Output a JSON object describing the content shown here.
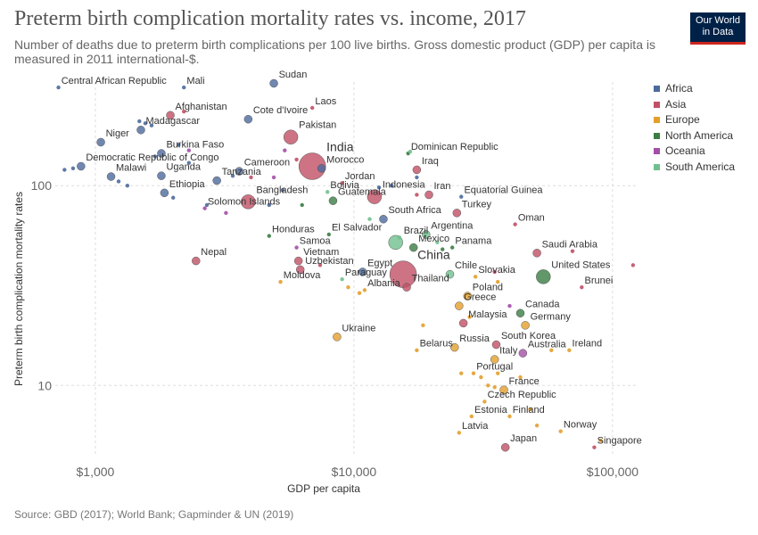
{
  "header": {
    "title": "Preterm birth complication mortality rates vs. income, 2017",
    "subtitle": "Number of deaths due to preterm birth complications per 100 live births. Gross domestic product (GDP) per capita is measured in 2011 international-$."
  },
  "logo": {
    "line1": "Our World",
    "line2": "in Data",
    "bg_color": "#002147",
    "accent_color": "#ce261e"
  },
  "footer": {
    "source": "Source: GBD (2017); World Bank; Gapminder & UN (2019)"
  },
  "chart_data": {
    "type": "scatter",
    "title": "Preterm birth complication mortality rates vs. income, 2017",
    "xlabel": "GDP per capita",
    "ylabel": "Preterm birth complication mortality rates",
    "xscale": "log",
    "yscale": "log",
    "xlim": [
      700,
      125000
    ],
    "ylim": [
      4.5,
      330
    ],
    "xticks": [
      {
        "value": 1000,
        "label": "$1,000"
      },
      {
        "value": 10000,
        "label": "$10,000"
      },
      {
        "value": 100000,
        "label": "$100,000"
      }
    ],
    "yticks": [
      {
        "value": 10,
        "label": "10"
      },
      {
        "value": 100,
        "label": "100"
      }
    ],
    "grid": true,
    "legend_position": "right",
    "series": [
      {
        "name": "Africa",
        "color": "#4c6a9c"
      },
      {
        "name": "Asia",
        "color": "#c15065"
      },
      {
        "name": "Europe",
        "color": "#e39f2b"
      },
      {
        "name": "North America",
        "color": "#3a7d44"
      },
      {
        "name": "Oceania",
        "color": "#a44ea8"
      },
      {
        "name": "South America",
        "color": "#70c08e"
      }
    ],
    "points": [
      {
        "label": "Central African Republic",
        "x": 720,
        "y": 310,
        "region": "Africa",
        "size": "s"
      },
      {
        "label": "Mali",
        "x": 2200,
        "y": 310,
        "region": "Africa",
        "size": "s"
      },
      {
        "label": "Sudan",
        "x": 4900,
        "y": 325,
        "region": "Africa",
        "size": "m"
      },
      {
        "label": "Laos",
        "x": 6900,
        "y": 245,
        "region": "Asia",
        "size": "s"
      },
      {
        "label": "Afghanistan",
        "x": 1950,
        "y": 225,
        "region": "Asia",
        "size": "m"
      },
      {
        "label": "Cote d'Ivoire",
        "x": 3900,
        "y": 215,
        "region": "Africa",
        "size": "m"
      },
      {
        "label": "Madagascar",
        "x": 1500,
        "y": 190,
        "region": "Africa",
        "size": "m"
      },
      {
        "label": "Pakistan",
        "x": 5700,
        "y": 175,
        "region": "Asia",
        "size": "l"
      },
      {
        "label": "Niger",
        "x": 1050,
        "y": 165,
        "region": "Africa",
        "size": "m"
      },
      {
        "label": "India",
        "x": 6900,
        "y": 125,
        "region": "Asia",
        "size": "xl"
      },
      {
        "label": "Burkina Faso",
        "x": 1800,
        "y": 145,
        "region": "Africa",
        "size": "m"
      },
      {
        "label": "Dominican Republic",
        "x": 16200,
        "y": 145,
        "region": "North America",
        "size": "s"
      },
      {
        "label": "Democratic Republic of Congo",
        "x": 880,
        "y": 125,
        "region": "Africa",
        "size": "m"
      },
      {
        "label": "Morocco",
        "x": 7500,
        "y": 122,
        "region": "Africa",
        "size": "m"
      },
      {
        "label": "Iraq",
        "x": 17500,
        "y": 120,
        "region": "Asia",
        "size": "m"
      },
      {
        "label": "Uganda",
        "x": 1800,
        "y": 112,
        "region": "Africa",
        "size": "m"
      },
      {
        "label": "Cameroon",
        "x": 3600,
        "y": 118,
        "region": "Africa",
        "size": "m"
      },
      {
        "label": "Malawi",
        "x": 1150,
        "y": 111,
        "region": "Africa",
        "size": "m"
      },
      {
        "label": "Tanzania",
        "x": 2950,
        "y": 106,
        "region": "Africa",
        "size": "m"
      },
      {
        "label": "Jordan",
        "x": 9000,
        "y": 103,
        "region": "Asia",
        "size": "s"
      },
      {
        "label": "Ethiopia",
        "x": 1850,
        "y": 92,
        "region": "Africa",
        "size": "m"
      },
      {
        "label": "Bolivia",
        "x": 7900,
        "y": 93,
        "region": "South America",
        "size": "s"
      },
      {
        "label": "Indonesia",
        "x": 12000,
        "y": 88,
        "region": "Asia",
        "size": "l"
      },
      {
        "label": "Iran",
        "x": 19500,
        "y": 90,
        "region": "Asia",
        "size": "m"
      },
      {
        "label": "Equatorial Guinea",
        "x": 26000,
        "y": 88,
        "region": "Africa",
        "size": "s"
      },
      {
        "label": "Bangladesh",
        "x": 3900,
        "y": 83,
        "region": "Asia",
        "size": "l"
      },
      {
        "label": "Guatemala",
        "x": 8300,
        "y": 84,
        "region": "North America",
        "size": "m"
      },
      {
        "label": "Solomon Islands",
        "x": 2650,
        "y": 77,
        "region": "Oceania",
        "size": "s"
      },
      {
        "label": "Turkey",
        "x": 25000,
        "y": 73,
        "region": "Asia",
        "size": "m"
      },
      {
        "label": "South Africa",
        "x": 13000,
        "y": 68,
        "region": "Africa",
        "size": "m"
      },
      {
        "label": "Oman",
        "x": 42000,
        "y": 64,
        "region": "Asia",
        "size": "s"
      },
      {
        "label": "Honduras",
        "x": 4700,
        "y": 56,
        "region": "North America",
        "size": "s"
      },
      {
        "label": "El Salvador",
        "x": 8000,
        "y": 57,
        "region": "North America",
        "size": "s"
      },
      {
        "label": "Argentina",
        "x": 19000,
        "y": 57,
        "region": "South America",
        "size": "m"
      },
      {
        "label": "Brazil",
        "x": 14500,
        "y": 52,
        "region": "South America",
        "size": "l"
      },
      {
        "label": "Samoa",
        "x": 6000,
        "y": 49,
        "region": "Oceania",
        "size": "s"
      },
      {
        "label": "Mexico",
        "x": 17000,
        "y": 49,
        "region": "North America",
        "size": "m"
      },
      {
        "label": "Panama",
        "x": 24000,
        "y": 49,
        "region": "North America",
        "size": "s"
      },
      {
        "label": "Saudi Arabia",
        "x": 51000,
        "y": 46,
        "region": "Asia",
        "size": "m"
      },
      {
        "label": "Nepal",
        "x": 2450,
        "y": 42,
        "region": "Asia",
        "size": "m"
      },
      {
        "label": "Vietnam",
        "x": 6100,
        "y": 42,
        "region": "Asia",
        "size": "m"
      },
      {
        "label": "China",
        "x": 15500,
        "y": 36,
        "region": "Asia",
        "size": "xl"
      },
      {
        "label": "Uzbekistan",
        "x": 6200,
        "y": 38,
        "region": "Asia",
        "size": "m"
      },
      {
        "label": "Egypt",
        "x": 10800,
        "y": 37,
        "region": "Africa",
        "size": "m"
      },
      {
        "label": "United States",
        "x": 54000,
        "y": 35,
        "region": "North America",
        "size": "l"
      },
      {
        "label": "Chile",
        "x": 23500,
        "y": 36,
        "region": "South America",
        "size": "m"
      },
      {
        "label": "Slovakia",
        "x": 29500,
        "y": 35,
        "region": "Europe",
        "size": "s"
      },
      {
        "label": "Paraguay",
        "x": 9000,
        "y": 34,
        "region": "South America",
        "size": "s"
      },
      {
        "label": "Moldova",
        "x": 5200,
        "y": 33,
        "region": "Europe",
        "size": "s"
      },
      {
        "label": "Thailand",
        "x": 16000,
        "y": 31,
        "region": "Asia",
        "size": "m"
      },
      {
        "label": "Brunei",
        "x": 76000,
        "y": 31,
        "region": "Asia",
        "size": "s"
      },
      {
        "label": "Albania",
        "x": 11000,
        "y": 30,
        "region": "Europe",
        "size": "s"
      },
      {
        "label": "Poland",
        "x": 27500,
        "y": 28,
        "region": "Europe",
        "size": "m"
      },
      {
        "label": "Greece",
        "x": 25500,
        "y": 25,
        "region": "Europe",
        "size": "m"
      },
      {
        "label": "Canada",
        "x": 44000,
        "y": 23,
        "region": "North America",
        "size": "m"
      },
      {
        "label": "Malaysia",
        "x": 26500,
        "y": 20.5,
        "region": "Asia",
        "size": "m"
      },
      {
        "label": "Germany",
        "x": 46000,
        "y": 20,
        "region": "Europe",
        "size": "m"
      },
      {
        "label": "Ukraine",
        "x": 8600,
        "y": 17.5,
        "region": "Europe",
        "size": "m"
      },
      {
        "label": "Russia",
        "x": 24500,
        "y": 15.5,
        "region": "Europe",
        "size": "m"
      },
      {
        "label": "South Korea",
        "x": 35500,
        "y": 16,
        "region": "Asia",
        "size": "m"
      },
      {
        "label": "Belarus",
        "x": 17500,
        "y": 15,
        "region": "Europe",
        "size": "s"
      },
      {
        "label": "Ireland",
        "x": 68000,
        "y": 15,
        "region": "Europe",
        "size": "s"
      },
      {
        "label": "Australia",
        "x": 45000,
        "y": 14.5,
        "region": "Oceania",
        "size": "m"
      },
      {
        "label": "Italy",
        "x": 35000,
        "y": 13.5,
        "region": "Europe",
        "size": "m"
      },
      {
        "label": "Portugal",
        "x": 29000,
        "y": 11.5,
        "region": "Europe",
        "size": "s"
      },
      {
        "label": "France",
        "x": 38000,
        "y": 9.5,
        "region": "Europe",
        "size": "m"
      },
      {
        "label": "Czech Republic",
        "x": 32000,
        "y": 8.3,
        "region": "Europe",
        "size": "s"
      },
      {
        "label": "Estonia",
        "x": 28500,
        "y": 7.0,
        "region": "Europe",
        "size": "s"
      },
      {
        "label": "Finland",
        "x": 40000,
        "y": 7.0,
        "region": "Europe",
        "size": "s"
      },
      {
        "label": "Norway",
        "x": 63000,
        "y": 5.9,
        "region": "Europe",
        "size": "s"
      },
      {
        "label": "Latvia",
        "x": 25500,
        "y": 5.8,
        "region": "Europe",
        "size": "s"
      },
      {
        "label": "Japan",
        "x": 38500,
        "y": 4.9,
        "region": "Asia",
        "size": "m"
      },
      {
        "label": "Singapore",
        "x": 85000,
        "y": 4.9,
        "region": "Asia",
        "size": "s"
      },
      {
        "x": 760,
        "y": 120,
        "region": "Africa",
        "size": "s"
      },
      {
        "x": 820,
        "y": 122,
        "region": "Africa",
        "size": "s"
      },
      {
        "x": 1230,
        "y": 105,
        "region": "Africa",
        "size": "s"
      },
      {
        "x": 1330,
        "y": 100,
        "region": "Africa",
        "size": "s"
      },
      {
        "x": 1480,
        "y": 210,
        "region": "Africa",
        "size": "s"
      },
      {
        "x": 1560,
        "y": 205,
        "region": "Africa",
        "size": "s"
      },
      {
        "x": 1650,
        "y": 200,
        "region": "Africa",
        "size": "s"
      },
      {
        "x": 1700,
        "y": 140,
        "region": "Africa",
        "size": "s"
      },
      {
        "x": 2000,
        "y": 87,
        "region": "Africa",
        "size": "s"
      },
      {
        "x": 2100,
        "y": 160,
        "region": "Africa",
        "size": "s"
      },
      {
        "x": 2300,
        "y": 130,
        "region": "Africa",
        "size": "s"
      },
      {
        "x": 2700,
        "y": 80,
        "region": "Africa",
        "size": "s"
      },
      {
        "x": 3400,
        "y": 112,
        "region": "Africa",
        "size": "s"
      },
      {
        "x": 4700,
        "y": 80,
        "region": "Africa",
        "size": "s"
      },
      {
        "x": 5300,
        "y": 95,
        "region": "Africa",
        "size": "s"
      },
      {
        "x": 12500,
        "y": 98,
        "region": "Africa",
        "size": "s"
      },
      {
        "x": 14000,
        "y": 100,
        "region": "Africa",
        "size": "s"
      },
      {
        "x": 17500,
        "y": 110,
        "region": "Africa",
        "size": "s"
      },
      {
        "x": 2200,
        "y": 235,
        "region": "Asia",
        "size": "s"
      },
      {
        "x": 4000,
        "y": 110,
        "region": "Asia",
        "size": "s"
      },
      {
        "x": 6000,
        "y": 135,
        "region": "Asia",
        "size": "s"
      },
      {
        "x": 7400,
        "y": 40,
        "region": "Asia",
        "size": "s"
      },
      {
        "x": 17500,
        "y": 90,
        "region": "Asia",
        "size": "s"
      },
      {
        "x": 70000,
        "y": 47,
        "region": "Asia",
        "size": "s"
      },
      {
        "x": 120000,
        "y": 40,
        "region": "Asia",
        "size": "s"
      },
      {
        "x": 35000,
        "y": 37,
        "region": "Asia",
        "size": "s"
      },
      {
        "x": 18500,
        "y": 20,
        "region": "Europe",
        "size": "s"
      },
      {
        "x": 26000,
        "y": 11.5,
        "region": "Europe",
        "size": "s"
      },
      {
        "x": 31000,
        "y": 11,
        "region": "Europe",
        "size": "s"
      },
      {
        "x": 33000,
        "y": 10,
        "region": "Europe",
        "size": "s"
      },
      {
        "x": 36000,
        "y": 11.5,
        "region": "Europe",
        "size": "s"
      },
      {
        "x": 44000,
        "y": 11,
        "region": "Europe",
        "size": "s"
      },
      {
        "x": 48000,
        "y": 7.6,
        "region": "Europe",
        "size": "s"
      },
      {
        "x": 51000,
        "y": 6.3,
        "region": "Europe",
        "size": "s"
      },
      {
        "x": 58000,
        "y": 15,
        "region": "Europe",
        "size": "s"
      },
      {
        "x": 90000,
        "y": 5.3,
        "region": "Europe",
        "size": "s"
      },
      {
        "x": 35000,
        "y": 9.8,
        "region": "Europe",
        "size": "s"
      },
      {
        "x": 28000,
        "y": 22,
        "region": "Europe",
        "size": "s"
      },
      {
        "x": 36000,
        "y": 33,
        "region": "Europe",
        "size": "s"
      },
      {
        "x": 9500,
        "y": 31,
        "region": "Europe",
        "size": "s"
      },
      {
        "x": 10500,
        "y": 29,
        "region": "Europe",
        "size": "s"
      },
      {
        "x": 4900,
        "y": 110,
        "region": "Oceania",
        "size": "s"
      },
      {
        "x": 2300,
        "y": 150,
        "region": "Oceania",
        "size": "s"
      },
      {
        "x": 3200,
        "y": 73,
        "region": "Oceania",
        "size": "s"
      },
      {
        "x": 5400,
        "y": 150,
        "region": "Oceania",
        "size": "s"
      },
      {
        "x": 40000,
        "y": 25,
        "region": "Oceania",
        "size": "s"
      },
      {
        "x": 6300,
        "y": 80,
        "region": "North America",
        "size": "s"
      },
      {
        "x": 22000,
        "y": 48,
        "region": "North America",
        "size": "s"
      },
      {
        "x": 15000,
        "y": 55,
        "region": "South America",
        "size": "s"
      },
      {
        "x": 11500,
        "y": 68,
        "region": "South America",
        "size": "s"
      },
      {
        "x": 16500,
        "y": 148,
        "region": "South America",
        "size": "s"
      },
      {
        "x": 21000,
        "y": 52,
        "region": "South America",
        "size": "s"
      }
    ]
  }
}
